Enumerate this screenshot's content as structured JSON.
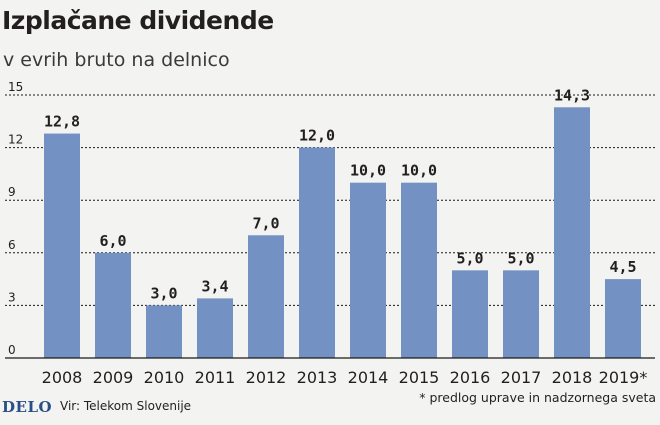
{
  "title": "Izplačane dividende",
  "subtitle": "v evrih bruto na delnico",
  "footer": {
    "logo": "DELO",
    "source": "Vir: Telekom Slovenije",
    "note": "* predlog uprave in nadzornega sveta"
  },
  "colors": {
    "bar": "#7392c3",
    "grid": "#1a1a1a",
    "text": "#231f20",
    "background": "#f3f3f1"
  },
  "chart_data": {
    "type": "bar",
    "title": "Izplačane dividende",
    "ylabel": "v evrih bruto na delnico",
    "xlabel": "",
    "categories": [
      "2008",
      "2009",
      "2010",
      "2011",
      "2012",
      "2013",
      "2014",
      "2015",
      "2016",
      "2017",
      "2018",
      "2019*"
    ],
    "values": [
      12.8,
      6.0,
      3.0,
      3.4,
      7.0,
      12.0,
      10.0,
      10.0,
      5.0,
      5.0,
      14.3,
      4.5
    ],
    "value_labels": [
      "12,8",
      "6,0",
      "3,0",
      "3,4",
      "7,0",
      "12,0",
      "10,0",
      "10,0",
      "5,0",
      "5,0",
      "14,3",
      "4,5"
    ],
    "yticks": [
      0,
      3,
      6,
      9,
      12,
      15
    ],
    "ylim": [
      0,
      15
    ],
    "grid": true,
    "legend": "none"
  }
}
